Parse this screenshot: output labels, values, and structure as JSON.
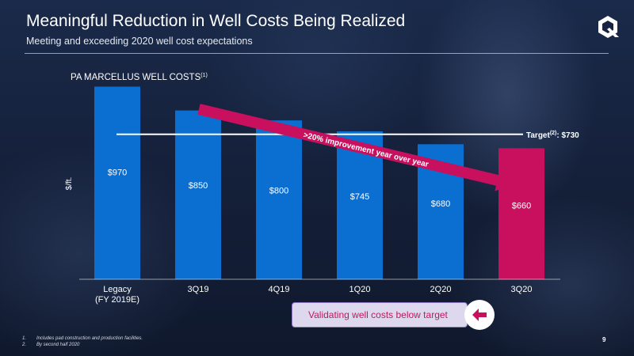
{
  "slide": {
    "title": "Meaningful Reduction in Well Costs Being Realized",
    "subtitle": "Meeting and exceeding 2020 well cost expectations",
    "page_number": "9"
  },
  "callout": {
    "text": "Validating well costs below target"
  },
  "footnotes": [
    {
      "num": "1.",
      "text": "Includes pad construction and production facilities."
    },
    {
      "num": "2.",
      "text": "By second half 2020"
    }
  ],
  "colors": {
    "bar": "#0a6fd1",
    "highlight_bar": "#c8105e",
    "arrow": "#c8105e",
    "target_line": "#ffffff",
    "background": "#17243f"
  },
  "chart_data": {
    "type": "bar",
    "title": "PA MARCELLUS WELL COSTS",
    "title_footnote": "(1)",
    "ylabel": "$/ft.",
    "categories": [
      "Legacy",
      "3Q19",
      "4Q19",
      "1Q20",
      "2Q20",
      "3Q20"
    ],
    "category_sublabels": [
      "(FY 2019E)",
      "",
      "",
      "",
      "",
      ""
    ],
    "values": [
      970,
      850,
      800,
      745,
      680,
      660
    ],
    "value_labels": [
      "$970",
      "$850",
      "$800",
      "$745",
      "$680",
      "$660"
    ],
    "highlight_index": 5,
    "ylim": [
      0,
      1000
    ],
    "grid": false,
    "target": {
      "value": 730,
      "label_prefix": "Target",
      "label_sup": "(2)",
      "label_value": ": $730"
    },
    "annotation": ">20% improvement year over year"
  }
}
